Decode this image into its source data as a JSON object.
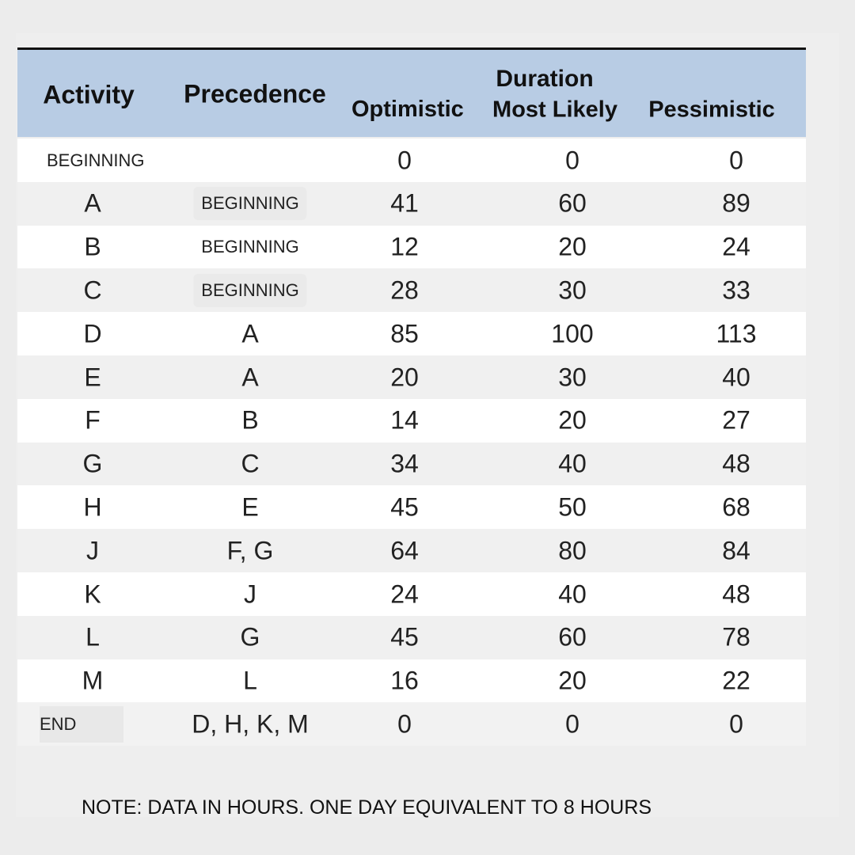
{
  "table": {
    "header": [
      "Activity",
      "Precedence"
    ],
    "group_header": "Duration",
    "subheaders": [
      "Optimistic",
      "Most Likely",
      "Pessimistic"
    ],
    "rows": [
      [
        "BEGINNING",
        "",
        0,
        0,
        0
      ],
      [
        "A",
        "BEGINNING",
        41,
        60,
        89
      ],
      [
        "B",
        "BEGINNING",
        12,
        20,
        24
      ],
      [
        "C",
        "BEGINNING",
        28,
        30,
        33
      ],
      [
        "D",
        "A",
        85,
        100,
        113
      ],
      [
        "E",
        "A",
        20,
        30,
        40
      ],
      [
        "F",
        "B",
        14,
        20,
        27
      ],
      [
        "G",
        "C",
        34,
        40,
        48
      ],
      [
        "H",
        "E",
        45,
        50,
        68
      ],
      [
        "J",
        "F, G",
        64,
        80,
        84
      ],
      [
        "K",
        "J",
        24,
        40,
        48
      ],
      [
        "L",
        "G",
        45,
        60,
        78
      ],
      [
        "M",
        "L",
        16,
        20,
        22
      ],
      [
        "END",
        "D, H, K, M",
        0,
        0,
        0
      ]
    ]
  },
  "note": "NOTE: DATA IN HOURS. ONE DAY EQUIVALENT TO 8 HOURS"
}
